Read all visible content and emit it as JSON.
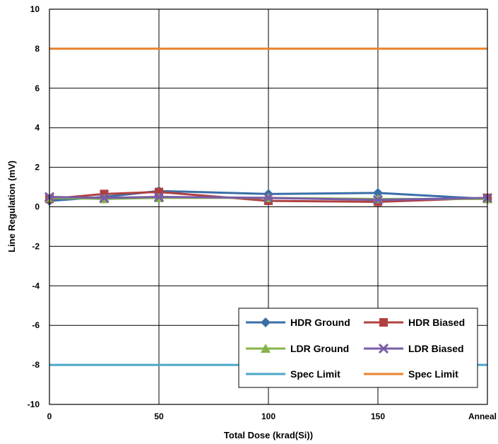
{
  "chart_data": {
    "type": "line",
    "title": "",
    "xlabel": "Total Dose (krad(Si))",
    "ylabel": "Line Regulation (mV)",
    "x_positions": [
      0,
      25,
      50,
      100,
      150,
      200
    ],
    "x_tick_values": [
      0,
      50,
      100,
      150,
      200
    ],
    "x_tick_labels": [
      "0",
      "50",
      "100",
      "150",
      "Anneal"
    ],
    "y_ticks": [
      10,
      8,
      6,
      4,
      2,
      0,
      -2,
      -4,
      -6,
      -8,
      -10
    ],
    "xlim": [
      0,
      200
    ],
    "ylim": [
      -10,
      10
    ],
    "grid": true,
    "legend_position": "bottom-right",
    "series": [
      {
        "name": "HDR Ground",
        "color": "#3a6ea8",
        "marker": "diamond",
        "x": [
          0,
          25,
          50,
          100,
          150,
          200
        ],
        "y": [
          0.3,
          0.5,
          0.8,
          0.65,
          0.7,
          0.4
        ]
      },
      {
        "name": "HDR Biased",
        "color": "#b04040",
        "marker": "square",
        "x": [
          0,
          25,
          50,
          100,
          150,
          200
        ],
        "y": [
          0.4,
          0.65,
          0.75,
          0.3,
          0.25,
          0.45
        ]
      },
      {
        "name": "LDR Ground",
        "color": "#86b44a",
        "marker": "triangle",
        "x": [
          0,
          25,
          50,
          100,
          150,
          200
        ],
        "y": [
          0.45,
          0.4,
          0.45,
          0.45,
          0.4,
          0.4
        ]
      },
      {
        "name": "LDR Biased",
        "color": "#7a5ca8",
        "marker": "x",
        "x": [
          0,
          25,
          50,
          100,
          150,
          200
        ],
        "y": [
          0.5,
          0.45,
          0.5,
          0.45,
          0.35,
          0.45
        ]
      },
      {
        "name": "Spec Limit",
        "color": "#4aa8c8",
        "marker": "none",
        "x": [
          0,
          200
        ],
        "y": [
          -8,
          -8
        ]
      },
      {
        "name": "Spec Limit",
        "color": "#e8822c",
        "marker": "none",
        "x": [
          0,
          200
        ],
        "y": [
          8,
          8
        ]
      }
    ]
  }
}
